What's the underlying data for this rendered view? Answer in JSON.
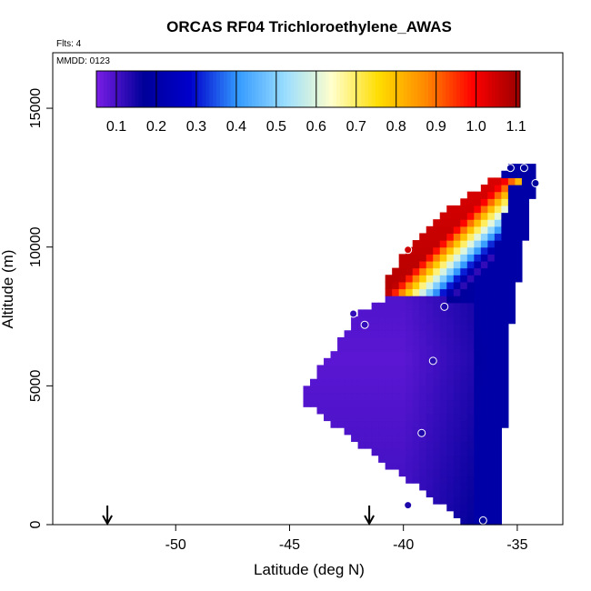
{
  "chart_data": {
    "type": "heatmap",
    "title": "ORCAS RF04 Trichloroethylene_AWAS",
    "flights_label": "Flts: 4",
    "date_label": "MMDD: 0123",
    "xlabel": "Latitude (deg N)",
    "ylabel": "Altitude (m)",
    "xlim": [
      -55.4,
      -33.0
    ],
    "ylim": [
      0,
      17000
    ],
    "xticks": [
      -50,
      -45,
      -40,
      -35
    ],
    "yticks": [
      0,
      5000,
      10000,
      15000
    ],
    "colorbar": {
      "min": 0.05,
      "max": 1.11,
      "ticks": [
        0.1,
        0.2,
        0.3,
        0.4,
        0.5,
        0.6,
        0.7,
        0.8,
        0.9,
        1.0,
        1.1
      ],
      "tick_labels": [
        "0.1",
        "0.2",
        "0.3",
        "0.4",
        "0.5",
        "0.6",
        "0.7",
        "0.8",
        "0.9",
        "1.0",
        "1.1"
      ],
      "colors": [
        "#7a1ee6",
        "#000099",
        "#0000cc",
        "#3399ff",
        "#99ddff",
        "#ffffcc",
        "#ffdd00",
        "#ff8800",
        "#ff0000",
        "#990000"
      ]
    },
    "arrows_x": [
      -53.0,
      -41.5
    ],
    "samples": [
      {
        "lat": -35.3,
        "alt": 12850,
        "value": 0.18
      },
      {
        "lat": -34.7,
        "alt": 12850,
        "value": 0.18
      },
      {
        "lat": -34.2,
        "alt": 12300,
        "value": 0.18
      },
      {
        "lat": -39.8,
        "alt": 9900,
        "value": 1.05
      },
      {
        "lat": -42.2,
        "alt": 7600,
        "value": 0.12
      },
      {
        "lat": -41.7,
        "alt": 7200,
        "value": 0.12
      },
      {
        "lat": -38.2,
        "alt": 7850,
        "value": 0.14
      },
      {
        "lat": -38.7,
        "alt": 5900,
        "value": 0.13
      },
      {
        "lat": -39.2,
        "alt": 3300,
        "value": 0.14
      },
      {
        "lat": -39.8,
        "alt": 700,
        "value": 0.14
      },
      {
        "lat": -36.5,
        "alt": 150,
        "value": 0.18
      }
    ]
  }
}
